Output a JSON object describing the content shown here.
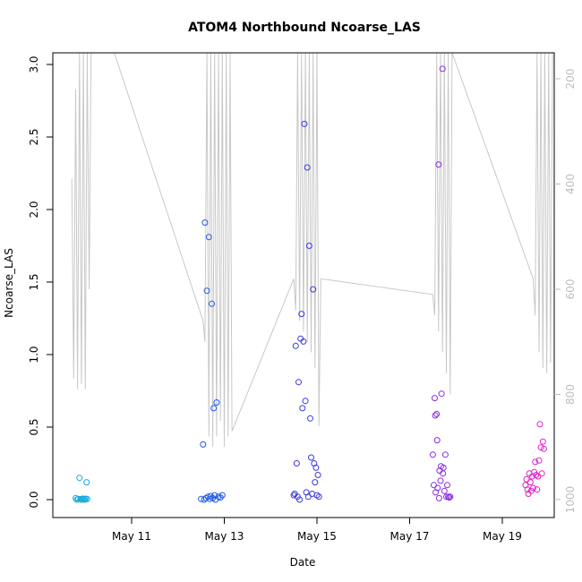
{
  "chart_data": {
    "type": "scatter",
    "title": "ATOM4 Northbound Ncoarse_LAS",
    "xlabel": "Date",
    "ylabel": "Ncoarse_LAS",
    "x_ticks": [
      {
        "date": "2019-05-11",
        "label": "May 11"
      },
      {
        "date": "2019-05-13",
        "label": "May 13"
      },
      {
        "date": "2019-05-15",
        "label": "May 15"
      },
      {
        "date": "2019-05-17",
        "label": "May 17"
      },
      {
        "date": "2019-05-19",
        "label": "May 19"
      }
    ],
    "xlim": [
      "2019-05-09T10:00",
      "2019-05-20T22:00"
    ],
    "ylim": [
      0,
      3.0
    ],
    "y_ticks": [
      "0.0",
      "0.5",
      "1.0",
      "1.5",
      "2.0",
      "2.5",
      "3.0"
    ],
    "right_axis": {
      "ticks": [
        "200",
        "400",
        "600",
        "800",
        "1000"
      ],
      "lim": [
        1000,
        200
      ],
      "reversed": true,
      "color": "#bebebe",
      "series_color": "#c8c8c8"
    },
    "grid": false,
    "legend": "none",
    "groups": [
      {
        "color": "#18a9e0",
        "points": [
          [
            "2019-05-09T19:00",
            0.01
          ],
          [
            "2019-05-09T19:40",
            0.0
          ],
          [
            "2019-05-09T20:20",
            0.005
          ],
          [
            "2019-05-09T21:00",
            0.15
          ],
          [
            "2019-05-09T21:30",
            0.003
          ],
          [
            "2019-05-09T22:00",
            0.0
          ],
          [
            "2019-05-09T22:40",
            0.007
          ],
          [
            "2019-05-09T23:10",
            0.002
          ],
          [
            "2019-05-09T23:40",
            0.0
          ],
          [
            "2019-05-10T00:10",
            0.006
          ],
          [
            "2019-05-10T00:40",
            0.12
          ],
          [
            "2019-05-10T01:00",
            0.004
          ]
        ]
      },
      {
        "color": "#1f58e8",
        "points": [
          [
            "2019-05-12T12:00",
            0.005
          ],
          [
            "2019-05-12T13:00",
            0.38
          ],
          [
            "2019-05-12T13:30",
            0.0
          ],
          [
            "2019-05-12T14:00",
            1.91
          ],
          [
            "2019-05-12T14:30",
            0.01
          ],
          [
            "2019-05-12T15:00",
            1.44
          ],
          [
            "2019-05-12T15:30",
            0.02
          ],
          [
            "2019-05-12T16:00",
            1.81
          ],
          [
            "2019-05-12T16:30",
            0.005
          ],
          [
            "2019-05-12T17:00",
            0.025
          ],
          [
            "2019-05-12T17:30",
            1.35
          ],
          [
            "2019-05-12T18:00",
            0.01
          ],
          [
            "2019-05-12T18:30",
            0.63
          ],
          [
            "2019-05-12T19:00",
            0.03
          ],
          [
            "2019-05-12T19:30",
            0.0
          ],
          [
            "2019-05-12T20:00",
            0.67
          ],
          [
            "2019-05-12T21:00",
            0.02
          ],
          [
            "2019-05-12T22:00",
            0.015
          ],
          [
            "2019-05-12T23:00",
            0.03
          ]
        ]
      },
      {
        "color": "#3a3adf",
        "points": [
          [
            "2019-05-14T12:00",
            0.03
          ],
          [
            "2019-05-14T12:30",
            0.04
          ],
          [
            "2019-05-14T13:00",
            1.06
          ],
          [
            "2019-05-14T13:30",
            0.25
          ],
          [
            "2019-05-14T14:00",
            0.02
          ],
          [
            "2019-05-14T14:30",
            0.81
          ],
          [
            "2019-05-14T15:00",
            0.0
          ],
          [
            "2019-05-14T15:30",
            1.11
          ],
          [
            "2019-05-14T16:00",
            1.28
          ],
          [
            "2019-05-14T16:30",
            0.63
          ],
          [
            "2019-05-14T17:00",
            1.09
          ],
          [
            "2019-05-14T17:30",
            2.59
          ],
          [
            "2019-05-14T18:00",
            0.68
          ],
          [
            "2019-05-14T18:30",
            0.05
          ],
          [
            "2019-05-14T19:00",
            2.29
          ],
          [
            "2019-05-14T19:30",
            0.02
          ],
          [
            "2019-05-14T20:00",
            1.75
          ],
          [
            "2019-05-14T20:30",
            0.56
          ],
          [
            "2019-05-14T21:00",
            0.29
          ],
          [
            "2019-05-14T21:30",
            0.04
          ],
          [
            "2019-05-14T22:00",
            1.45
          ],
          [
            "2019-05-14T22:30",
            0.25
          ],
          [
            "2019-05-14T23:00",
            0.12
          ],
          [
            "2019-05-14T23:30",
            0.22
          ],
          [
            "2019-05-15T00:00",
            0.03
          ],
          [
            "2019-05-15T00:30",
            0.17
          ],
          [
            "2019-05-15T01:00",
            0.02
          ]
        ]
      },
      {
        "color": "#8a2be2",
        "points": [
          [
            "2019-05-17T12:00",
            0.31
          ],
          [
            "2019-05-17T12:30",
            0.1
          ],
          [
            "2019-05-17T13:00",
            0.7
          ],
          [
            "2019-05-17T13:15",
            0.58
          ],
          [
            "2019-05-17T13:30",
            0.05
          ],
          [
            "2019-05-17T14:00",
            0.59
          ],
          [
            "2019-05-17T14:15",
            0.41
          ],
          [
            "2019-05-17T14:30",
            0.08
          ],
          [
            "2019-05-17T15:00",
            2.31
          ],
          [
            "2019-05-17T15:15",
            0.01
          ],
          [
            "2019-05-17T15:30",
            0.2
          ],
          [
            "2019-05-17T16:00",
            0.13
          ],
          [
            "2019-05-17T16:15",
            0.23
          ],
          [
            "2019-05-17T16:30",
            0.73
          ],
          [
            "2019-05-17T17:00",
            2.97
          ],
          [
            "2019-05-17T17:15",
            0.18
          ],
          [
            "2019-05-17T17:30",
            0.22
          ],
          [
            "2019-05-17T18:00",
            0.06
          ],
          [
            "2019-05-17T18:30",
            0.31
          ],
          [
            "2019-05-17T19:00",
            0.02
          ],
          [
            "2019-05-17T19:30",
            0.1
          ],
          [
            "2019-05-17T20:00",
            0.02
          ],
          [
            "2019-05-17T20:30",
            0.015
          ],
          [
            "2019-05-17T21:00",
            0.02
          ]
        ]
      },
      {
        "color": "#e020c8",
        "points": [
          [
            "2019-05-19T12:00",
            0.1
          ],
          [
            "2019-05-19T12:30",
            0.14
          ],
          [
            "2019-05-19T13:00",
            0.07
          ],
          [
            "2019-05-19T13:30",
            0.04
          ],
          [
            "2019-05-19T14:00",
            0.18
          ],
          [
            "2019-05-19T14:30",
            0.12
          ],
          [
            "2019-05-19T15:00",
            0.06
          ],
          [
            "2019-05-19T15:30",
            0.16
          ],
          [
            "2019-05-19T16:00",
            0.08
          ],
          [
            "2019-05-19T16:30",
            0.19
          ],
          [
            "2019-05-19T17:00",
            0.26
          ],
          [
            "2019-05-19T17:30",
            0.17
          ],
          [
            "2019-05-19T18:00",
            0.07
          ],
          [
            "2019-05-19T18:30",
            0.16
          ],
          [
            "2019-05-19T19:00",
            0.27
          ],
          [
            "2019-05-19T19:30",
            0.52
          ],
          [
            "2019-05-19T20:00",
            0.36
          ],
          [
            "2019-05-19T20:30",
            0.18
          ],
          [
            "2019-05-19T21:00",
            0.4
          ],
          [
            "2019-05-19T21:30",
            0.35
          ]
        ]
      }
    ],
    "right_series": {
      "x": [
        "2019-05-09T17:00",
        "2019-05-09T18:00",
        "2019-05-09T19:00",
        "2019-05-09T20:00",
        "2019-05-09T21:00",
        "2019-05-09T22:00",
        "2019-05-09T23:00",
        "2019-05-10T00:00",
        "2019-05-10T01:00",
        "2019-05-10T02:00",
        "2019-05-10T03:00",
        "2019-05-10T15:00",
        "2019-05-12T13:00",
        "2019-05-12T14:00",
        "2019-05-12T15:00",
        "2019-05-12T16:00",
        "2019-05-12T17:00",
        "2019-05-12T18:00",
        "2019-05-12T19:00",
        "2019-05-12T20:00",
        "2019-05-12T21:00",
        "2019-05-12T22:00",
        "2019-05-12T23:00",
        "2019-05-13T00:00",
        "2019-05-13T01:00",
        "2019-05-13T02:00",
        "2019-05-13T03:00",
        "2019-05-13T04:00",
        "2019-05-14T12:00",
        "2019-05-14T13:00",
        "2019-05-14T14:00",
        "2019-05-14T15:00",
        "2019-05-14T16:00",
        "2019-05-14T17:00",
        "2019-05-14T18:00",
        "2019-05-14T19:00",
        "2019-05-14T20:00",
        "2019-05-14T21:00",
        "2019-05-14T22:00",
        "2019-05-14T23:00",
        "2019-05-15T00:00",
        "2019-05-15T01:00",
        "2019-05-15T02:00",
        "2019-05-17T12:00",
        "2019-05-17T13:00",
        "2019-05-17T14:00",
        "2019-05-17T15:00",
        "2019-05-17T16:00",
        "2019-05-17T17:00",
        "2019-05-17T18:00",
        "2019-05-17T19:00",
        "2019-05-17T20:00",
        "2019-05-17T21:00",
        "2019-05-17T22:00",
        "2019-05-19T16:00",
        "2019-05-19T17:00",
        "2019-05-19T18:00",
        "2019-05-19T19:00",
        "2019-05-19T20:00",
        "2019-05-19T21:00",
        "2019-05-19T22:00",
        "2019-05-19T23:00",
        "2019-05-20T00:00",
        "2019-05-20T01:00",
        "2019-05-20T02:00"
      ],
      "y": [
        390,
        770,
        220,
        790,
        150,
        780,
        150,
        790,
        150,
        600,
        150,
        150,
        660,
        700,
        150,
        880,
        150,
        900,
        150,
        880,
        150,
        850,
        150,
        900,
        150,
        880,
        150,
        870,
        580,
        640,
        150,
        660,
        150,
        680,
        150,
        700,
        150,
        720,
        150,
        750,
        150,
        860,
        580,
        610,
        650,
        150,
        680,
        150,
        720,
        150,
        760,
        150,
        800,
        150,
        580,
        650,
        150,
        720,
        150,
        750,
        150,
        760,
        150,
        740,
        150
      ]
    }
  }
}
